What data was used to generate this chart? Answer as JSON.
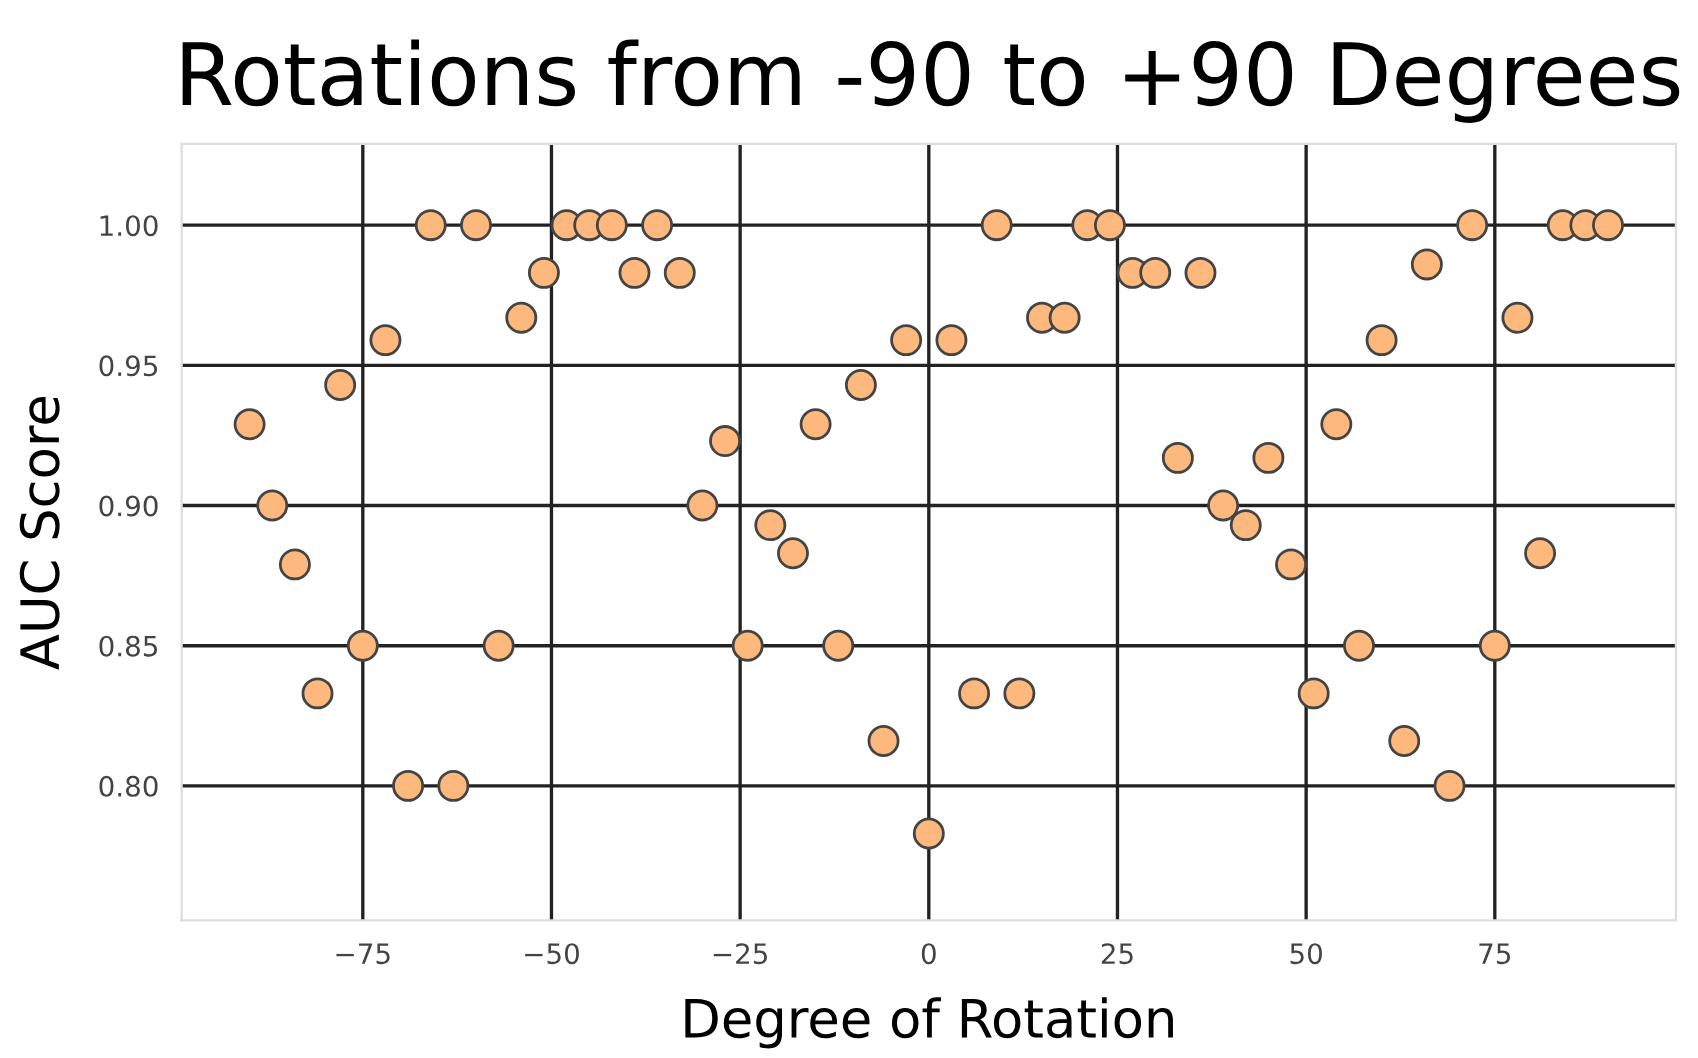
{
  "chart_data": {
    "type": "scatter",
    "title": "Rotations from -90 to +90 Degrees",
    "xlabel": "Degree of Rotation",
    "ylabel": "AUC Score",
    "x": [
      -90,
      -87,
      -84,
      -81,
      -78,
      -75,
      -72,
      -69,
      -66,
      -63,
      -60,
      -57,
      -54,
      -51,
      -48,
      -45,
      -42,
      -39,
      -36,
      -33,
      -30,
      -27,
      -24,
      -21,
      -18,
      -15,
      -12,
      -9,
      -6,
      -3,
      0,
      3,
      6,
      9,
      12,
      15,
      18,
      21,
      24,
      27,
      30,
      33,
      36,
      39,
      42,
      45,
      48,
      51,
      54,
      57,
      60,
      63,
      66,
      69,
      72,
      75,
      78,
      81,
      84,
      87,
      90
    ],
    "series": [
      {
        "color": "#fdb97d",
        "values": [
          0.929,
          0.9,
          0.879,
          0.833,
          0.943,
          0.85,
          0.959,
          0.8,
          1.0,
          0.8,
          1.0,
          0.85,
          0.967,
          0.983,
          1.0,
          1.0,
          1.0,
          0.983,
          1.0,
          0.983,
          0.9,
          0.923,
          0.85,
          0.893,
          0.883,
          0.929,
          0.85,
          0.943,
          0.816,
          0.959,
          0.783,
          0.959,
          0.833,
          1.0,
          0.833,
          0.967,
          0.967,
          1.0,
          1.0,
          0.983,
          0.983,
          0.917,
          0.983,
          0.9,
          0.893,
          0.917,
          0.879,
          0.833,
          0.929,
          0.85,
          0.959,
          0.816,
          0.986,
          0.8,
          1.0,
          0.85,
          0.967,
          0.883,
          1.0,
          1.0,
          1.0
        ]
      }
    ],
    "xlim": [
      -99,
      99
    ],
    "ylim": [
      0.752,
      1.029
    ],
    "xticks": [
      {
        "value": -75,
        "label": "−75"
      },
      {
        "value": -50,
        "label": "−50"
      },
      {
        "value": -25,
        "label": "−25"
      },
      0,
      25,
      50,
      75
    ],
    "yticks": [
      {
        "value": 0.8,
        "label": "0.80"
      },
      {
        "value": 0.85,
        "label": "0.85"
      },
      {
        "value": 0.9,
        "label": "0.90"
      },
      {
        "value": 0.95,
        "label": "0.95"
      },
      {
        "value": 1.0,
        "label": "1.00"
      }
    ],
    "grid": true,
    "marker": "circle",
    "legend": false
  }
}
